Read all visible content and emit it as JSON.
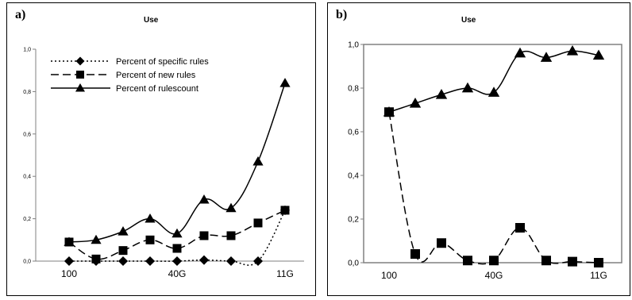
{
  "chart_data": [
    {
      "type": "line",
      "panel_label": "a)",
      "title": "Use",
      "x_tick_labels": [
        "100",
        "40G",
        "11G"
      ],
      "y_tick_labels": [
        "0,0",
        "0,2",
        "0,4",
        "0,6",
        "0,8",
        "1,0"
      ],
      "ylim": [
        0,
        1
      ],
      "legend_position": "top-left",
      "series": [
        {
          "name": "Percent of specific rules",
          "style": "dotted",
          "marker": "diamond",
          "values": [
            0.0,
            0.0,
            0.0,
            0.0,
            0.0,
            0.005,
            0.0,
            0.0,
            0.24
          ]
        },
        {
          "name": "Percent of new rules",
          "style": "dashed",
          "marker": "square",
          "values": [
            0.09,
            0.01,
            0.05,
            0.1,
            0.06,
            0.12,
            0.12,
            0.18,
            0.24
          ]
        },
        {
          "name": "Percent of rulescount",
          "style": "solid",
          "marker": "triangle",
          "values": [
            0.09,
            0.1,
            0.14,
            0.2,
            0.13,
            0.29,
            0.25,
            0.47,
            0.84
          ]
        }
      ]
    },
    {
      "type": "line",
      "panel_label": "b)",
      "title": "Use",
      "x_tick_labels": [
        "100",
        "40G",
        "11G"
      ],
      "y_tick_labels": [
        "0,0",
        "0,2",
        "0,4",
        "0,6",
        "0,8",
        "1,0"
      ],
      "ylim": [
        0,
        1
      ],
      "series": [
        {
          "style": "solid",
          "marker": "triangle",
          "values": [
            0.69,
            0.73,
            0.77,
            0.8,
            0.78,
            0.96,
            0.94,
            0.97,
            0.95
          ]
        },
        {
          "style": "dashed",
          "marker": "square",
          "values": [
            0.69,
            0.04,
            0.09,
            0.01,
            0.01,
            0.16,
            0.01,
            0.005,
            0.0
          ]
        }
      ]
    }
  ]
}
